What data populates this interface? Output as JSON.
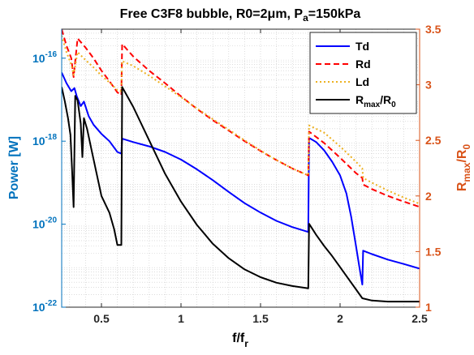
{
  "chart_data": {
    "type": "line",
    "title": "Free C3F8 bubble, R0=2μm, P_a=150kPa",
    "title_parts": {
      "main": "Free C3F8 bubble, R0=2",
      "mu": "μ",
      "m_pa": "m, P",
      "sub_a": "a",
      "tail": "=150kPa"
    },
    "xlabel": {
      "main": "f/f",
      "sub": "r"
    },
    "ylabel_left": "Power [W]",
    "ylabel_right": {
      "main": "R",
      "sub1": "max",
      "mid": "/R",
      "sub2": "0"
    },
    "xlim": [
      0.25,
      2.5
    ],
    "ylim_left": [
      1e-22,
      5e-16
    ],
    "ylim_left_scale": "log",
    "ylim_right": [
      1,
      3.5
    ],
    "x_ticks": [
      0.5,
      1,
      1.5,
      2,
      2.5
    ],
    "x_tick_labels": [
      "0.5",
      "1",
      "1.5",
      "2",
      "2.5"
    ],
    "y_left_ticks": [
      1e-22,
      1e-20,
      1e-18,
      1e-16
    ],
    "y_left_tick_labels": [
      {
        "base": "10",
        "exp": "-22"
      },
      {
        "base": "10",
        "exp": "-20"
      },
      {
        "base": "10",
        "exp": "-18"
      },
      {
        "base": "10",
        "exp": "-16"
      }
    ],
    "y_right_ticks": [
      1,
      1.5,
      2,
      2.5,
      3,
      3.5
    ],
    "y_right_tick_labels": [
      "1",
      "1.5",
      "2",
      "2.5",
      "3",
      "3.5"
    ],
    "grid": "minor dotted",
    "legend_position": "top-right",
    "colors": {
      "left_axis": "#0072BD",
      "right_axis": "#D95319",
      "Td": "#0000FF",
      "Rd": "#FF0000",
      "Ld": "#EDB120",
      "Rmax": "#000000"
    },
    "series": [
      {
        "name": "Td",
        "axis": "left",
        "style": "solid",
        "color": "#0000FF",
        "points": [
          [
            0.25,
            4.5e-17
          ],
          [
            0.28,
            2.5e-17
          ],
          [
            0.31,
            1.6e-17
          ],
          [
            0.33,
            1.9e-17
          ],
          [
            0.345,
            1.2e-17
          ],
          [
            0.37,
            7e-18
          ],
          [
            0.39,
            9e-18
          ],
          [
            0.42,
            4e-18
          ],
          [
            0.45,
            2.5e-18
          ],
          [
            0.5,
            1.5e-18
          ],
          [
            0.55,
            1e-18
          ],
          [
            0.6,
            5.5e-19
          ],
          [
            0.625,
            5e-19
          ],
          [
            0.63,
            1.15e-18
          ],
          [
            0.7,
            9.5e-19
          ],
          [
            0.8,
            7.5e-19
          ],
          [
            0.9,
            5.5e-19
          ],
          [
            1.0,
            3.6e-19
          ],
          [
            1.1,
            2.1e-19
          ],
          [
            1.2,
            1.15e-19
          ],
          [
            1.3,
            6e-20
          ],
          [
            1.4,
            3.2e-20
          ],
          [
            1.5,
            1.9e-20
          ],
          [
            1.6,
            1.2e-20
          ],
          [
            1.7,
            8.5e-21
          ],
          [
            1.8,
            6.5e-21
          ],
          [
            1.805,
            1.2e-18
          ],
          [
            1.85,
            9.5e-19
          ],
          [
            1.9,
            6e-19
          ],
          [
            1.95,
            3.2e-19
          ],
          [
            2.0,
            1.5e-19
          ],
          [
            2.04,
            5.5e-20
          ],
          [
            2.07,
            1.5e-20
          ],
          [
            2.1,
            3e-21
          ],
          [
            2.12,
            1e-21
          ],
          [
            2.14,
            3.5e-22
          ],
          [
            2.145,
            2.3e-21
          ],
          [
            2.2,
            1.9e-21
          ],
          [
            2.3,
            1.4e-21
          ],
          [
            2.4,
            1.1e-21
          ],
          [
            2.5,
            8.5e-22
          ]
        ]
      },
      {
        "name": "Rd",
        "axis": "left",
        "style": "dashed",
        "color": "#FF0000",
        "points": [
          [
            0.25,
            5e-16
          ],
          [
            0.28,
            2e-16
          ],
          [
            0.31,
            1e-16
          ],
          [
            0.325,
            3.5e-17
          ],
          [
            0.35,
            3e-16
          ],
          [
            0.4,
            1.8e-16
          ],
          [
            0.45,
            1e-16
          ],
          [
            0.5,
            5e-17
          ],
          [
            0.55,
            2.8e-17
          ],
          [
            0.6,
            1.5e-17
          ],
          [
            0.625,
            1.3e-17
          ],
          [
            0.63,
            2.2e-16
          ],
          [
            0.65,
            1.8e-16
          ],
          [
            0.7,
            1.1e-16
          ],
          [
            0.8,
            5e-17
          ],
          [
            0.9,
            2.5e-17
          ],
          [
            1.0,
            1.2e-17
          ],
          [
            1.1,
            6e-18
          ],
          [
            1.2,
            3.2e-18
          ],
          [
            1.3,
            1.8e-18
          ],
          [
            1.4,
            1e-18
          ],
          [
            1.5,
            5.8e-19
          ],
          [
            1.6,
            3.5e-19
          ],
          [
            1.7,
            2.2e-19
          ],
          [
            1.8,
            1.5e-19
          ],
          [
            1.805,
            1.7e-18
          ],
          [
            1.9,
            9e-19
          ],
          [
            2.0,
            4e-19
          ],
          [
            2.1,
            1.7e-19
          ],
          [
            2.14,
            1.3e-19
          ],
          [
            2.145,
            9e-20
          ],
          [
            2.2,
            7e-20
          ],
          [
            2.3,
            4.8e-20
          ],
          [
            2.4,
            3.5e-20
          ],
          [
            2.5,
            2.6e-20
          ]
        ]
      },
      {
        "name": "Ld",
        "axis": "left",
        "style": "dotted",
        "color": "#EDB120",
        "points": [
          [
            0.25,
            3.5e-16
          ],
          [
            0.28,
            1.4e-16
          ],
          [
            0.31,
            7e-17
          ],
          [
            0.325,
            4e-17
          ],
          [
            0.35,
            1.4e-16
          ],
          [
            0.4,
            9e-17
          ],
          [
            0.45,
            6e-17
          ],
          [
            0.5,
            3.8e-17
          ],
          [
            0.55,
            2.6e-17
          ],
          [
            0.6,
            1.7e-17
          ],
          [
            0.625,
            1.6e-17
          ],
          [
            0.63,
            8.5e-17
          ],
          [
            0.7,
            6.5e-17
          ],
          [
            0.8,
            3.8e-17
          ],
          [
            0.9,
            2.1e-17
          ],
          [
            1.0,
            1.15e-17
          ],
          [
            1.1,
            6.2e-18
          ],
          [
            1.2,
            3.4e-18
          ],
          [
            1.3,
            1.9e-18
          ],
          [
            1.4,
            1.05e-18
          ],
          [
            1.5,
            6e-19
          ],
          [
            1.6,
            3.5e-19
          ],
          [
            1.7,
            2.2e-19
          ],
          [
            1.8,
            1.5e-19
          ],
          [
            1.805,
            2.4e-18
          ],
          [
            1.9,
            1.6e-18
          ],
          [
            2.0,
            7.5e-19
          ],
          [
            2.1,
            3.2e-19
          ],
          [
            2.14,
            2.2e-19
          ],
          [
            2.145,
            1.3e-19
          ],
          [
            2.2,
            1e-19
          ],
          [
            2.3,
            6.5e-20
          ],
          [
            2.4,
            4.4e-20
          ],
          [
            2.5,
            3.1e-20
          ]
        ]
      },
      {
        "name": "Rmax/R0",
        "axis": "right",
        "style": "solid",
        "color": "#000000",
        "points": [
          [
            0.25,
            2.98
          ],
          [
            0.27,
            2.85
          ],
          [
            0.29,
            2.7
          ],
          [
            0.305,
            2.55
          ],
          [
            0.315,
            2.25
          ],
          [
            0.325,
            1.9
          ],
          [
            0.335,
            2.9
          ],
          [
            0.35,
            2.86
          ],
          [
            0.37,
            2.65
          ],
          [
            0.38,
            2.35
          ],
          [
            0.39,
            2.7
          ],
          [
            0.41,
            2.6
          ],
          [
            0.44,
            2.4
          ],
          [
            0.47,
            2.2
          ],
          [
            0.5,
            2.0
          ],
          [
            0.55,
            1.85
          ],
          [
            0.58,
            1.7
          ],
          [
            0.6,
            1.56
          ],
          [
            0.625,
            1.56
          ],
          [
            0.63,
            2.98
          ],
          [
            0.7,
            2.8
          ],
          [
            0.8,
            2.5
          ],
          [
            0.9,
            2.2
          ],
          [
            1.0,
            1.95
          ],
          [
            1.1,
            1.74
          ],
          [
            1.2,
            1.57
          ],
          [
            1.3,
            1.44
          ],
          [
            1.4,
            1.34
          ],
          [
            1.5,
            1.27
          ],
          [
            1.6,
            1.22
          ],
          [
            1.7,
            1.19
          ],
          [
            1.8,
            1.17
          ],
          [
            1.805,
            1.75
          ],
          [
            1.85,
            1.65
          ],
          [
            1.9,
            1.55
          ],
          [
            1.95,
            1.46
          ],
          [
            2.0,
            1.36
          ],
          [
            2.05,
            1.26
          ],
          [
            2.1,
            1.16
          ],
          [
            2.14,
            1.08
          ],
          [
            2.2,
            1.06
          ],
          [
            2.3,
            1.05
          ],
          [
            2.4,
            1.05
          ],
          [
            2.5,
            1.05
          ]
        ]
      }
    ],
    "legend": [
      {
        "label": "Td",
        "style": "solid",
        "color": "#0000FF"
      },
      {
        "label": "Rd",
        "style": "dashed",
        "color": "#FF0000"
      },
      {
        "label": "Ld",
        "style": "dotted",
        "color": "#EDB120"
      },
      {
        "label_parts": {
          "main": "R",
          "sub1": "max",
          "mid": "/R",
          "sub2": "0"
        },
        "style": "solid",
        "color": "#000000"
      }
    ]
  }
}
